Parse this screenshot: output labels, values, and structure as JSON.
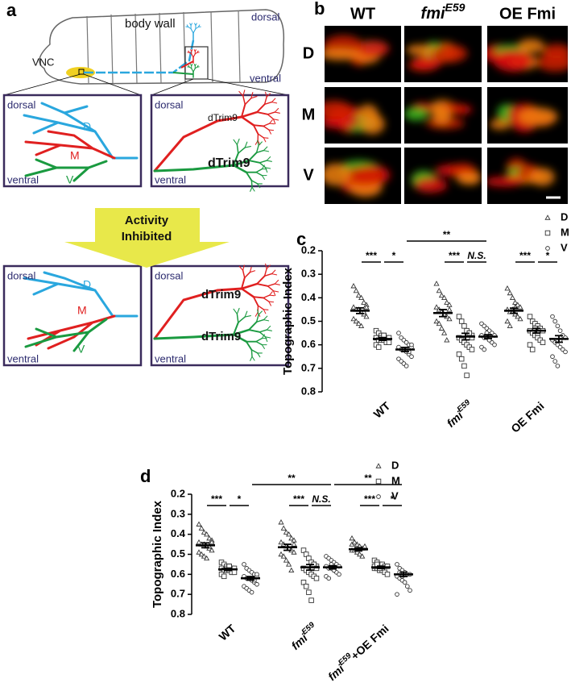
{
  "panel_a": {
    "label": "a",
    "larva": {
      "body_wall": "body wall",
      "dorsal": "dorsal",
      "ventral": "ventral",
      "vnc": "VNC"
    },
    "boxes": [
      {
        "dorsal": "dorsal",
        "ventral": "ventral",
        "labels": [
          "D",
          "M",
          "V"
        ]
      },
      {
        "dorsal": "dorsal",
        "ventral": "ventral",
        "labels": [
          "dTrim9",
          "dTrim9"
        ]
      },
      {
        "dorsal": "dorsal",
        "ventral": "ventral",
        "labels": [
          "D",
          "M",
          "V"
        ]
      },
      {
        "dorsal": "dorsal",
        "ventral": "ventral",
        "labels": [
          "dTrim9",
          "dTrim9"
        ]
      }
    ],
    "arrow": [
      "Activity",
      "Inhibited"
    ]
  },
  "panel_b": {
    "label": "b",
    "columns": [
      "WT",
      {
        "text": "fmi",
        "sup": "E59"
      },
      "OE Fmi"
    ],
    "rows": [
      "D",
      "M",
      "V"
    ]
  },
  "chart_data": [
    {
      "type": "dot",
      "panel_label": "c",
      "ylabel": "Topographic Index",
      "categories": [
        "WT",
        {
          "text": "fmi",
          "sup": "E59"
        },
        "OE Fmi"
      ],
      "ylim": [
        0.2,
        0.8
      ],
      "yticks": [
        0.2,
        0.3,
        0.4,
        0.5,
        0.6,
        0.7,
        0.8
      ],
      "y_inverted": true,
      "series": [
        {
          "name": "D",
          "marker": "triangle",
          "color": "#333333",
          "values": [
            [
              0.35,
              0.37,
              0.39,
              0.4,
              0.42,
              0.43,
              0.44,
              0.45,
              0.45,
              0.46,
              0.47,
              0.48,
              0.49,
              0.5,
              0.51,
              0.52,
              0.46,
              0.44
            ],
            [
              0.34,
              0.37,
              0.39,
              0.4,
              0.42,
              0.43,
              0.44,
              0.45,
              0.46,
              0.47,
              0.48,
              0.49,
              0.5,
              0.51,
              0.53,
              0.55,
              0.58,
              0.45
            ],
            [
              0.36,
              0.38,
              0.4,
              0.42,
              0.43,
              0.44,
              0.45,
              0.46,
              0.46,
              0.47,
              0.48,
              0.49,
              0.5,
              0.52,
              0.45,
              0.44
            ]
          ],
          "mean": [
            0.455,
            0.465,
            0.455
          ],
          "sem": [
            0.012,
            0.015,
            0.011
          ]
        },
        {
          "name": "M",
          "marker": "square",
          "color": "#333333",
          "values": [
            [
              0.54,
              0.55,
              0.56,
              0.56,
              0.57,
              0.57,
              0.57,
              0.58,
              0.58,
              0.58,
              0.59,
              0.59,
              0.6,
              0.61,
              0.57,
              0.56
            ],
            [
              0.48,
              0.5,
              0.52,
              0.54,
              0.55,
              0.56,
              0.57,
              0.58,
              0.59,
              0.6,
              0.61,
              0.62,
              0.64,
              0.66,
              0.69,
              0.73,
              0.55,
              0.57
            ],
            [
              0.48,
              0.5,
              0.51,
              0.52,
              0.53,
              0.54,
              0.54,
              0.55,
              0.56,
              0.57,
              0.58,
              0.59,
              0.6,
              0.62,
              0.53,
              0.55
            ]
          ],
          "mean": [
            0.575,
            0.565,
            0.54
          ],
          "sem": [
            0.006,
            0.014,
            0.01
          ]
        },
        {
          "name": "V",
          "marker": "circle",
          "color": "#333333",
          "values": [
            [
              0.55,
              0.57,
              0.58,
              0.59,
              0.6,
              0.61,
              0.61,
              0.62,
              0.62,
              0.63,
              0.64,
              0.65,
              0.66,
              0.67,
              0.68,
              0.69,
              0.63,
              0.6
            ],
            [
              0.51,
              0.52,
              0.53,
              0.54,
              0.55,
              0.56,
              0.56,
              0.57,
              0.57,
              0.58,
              0.59,
              0.6,
              0.61,
              0.62,
              0.55,
              0.58
            ],
            [
              0.48,
              0.5,
              0.52,
              0.54,
              0.56,
              0.57,
              0.58,
              0.59,
              0.6,
              0.61,
              0.62,
              0.63,
              0.65,
              0.67,
              0.69,
              0.58
            ]
          ],
          "mean": [
            0.62,
            0.565,
            0.575
          ],
          "sem": [
            0.009,
            0.008,
            0.014
          ]
        }
      ],
      "annotations": [
        {
          "text": "***",
          "from": [
            0,
            0
          ],
          "to": [
            0,
            1
          ]
        },
        {
          "text": "*",
          "from": [
            0,
            1
          ],
          "to": [
            0,
            2
          ]
        },
        {
          "text": "**",
          "from": [
            0,
            2
          ],
          "to": [
            1,
            2
          ]
        },
        {
          "text": "***",
          "from": [
            1,
            0
          ],
          "to": [
            1,
            1
          ]
        },
        {
          "text": "N.S.",
          "from": [
            1,
            1
          ],
          "to": [
            1,
            2
          ]
        },
        {
          "text": "***",
          "from": [
            2,
            0
          ],
          "to": [
            2,
            1
          ]
        },
        {
          "text": "*",
          "from": [
            2,
            1
          ],
          "to": [
            2,
            2
          ]
        }
      ]
    },
    {
      "type": "dot",
      "panel_label": "d",
      "ylabel": "Topographic Index",
      "categories": [
        "WT",
        {
          "text": "fmi",
          "sup": "E59"
        },
        {
          "text": "fmi",
          "sup": "E59",
          "after": "+OE Fmi"
        }
      ],
      "ylim": [
        0.2,
        0.8
      ],
      "yticks": [
        0.2,
        0.3,
        0.4,
        0.5,
        0.6,
        0.7,
        0.8
      ],
      "y_inverted": true,
      "series": [
        {
          "name": "D",
          "marker": "triangle",
          "color": "#333333",
          "values": [
            [
              0.35,
              0.37,
              0.39,
              0.4,
              0.42,
              0.43,
              0.44,
              0.45,
              0.45,
              0.46,
              0.47,
              0.48,
              0.49,
              0.5,
              0.51,
              0.52,
              0.46,
              0.44
            ],
            [
              0.34,
              0.37,
              0.39,
              0.4,
              0.42,
              0.43,
              0.44,
              0.45,
              0.46,
              0.47,
              0.48,
              0.49,
              0.5,
              0.51,
              0.53,
              0.55,
              0.58,
              0.45
            ],
            [
              0.42,
              0.44,
              0.45,
              0.46,
              0.47,
              0.47,
              0.48,
              0.48,
              0.49,
              0.5,
              0.51,
              0.46,
              0.45,
              0.44
            ]
          ],
          "mean": [
            0.455,
            0.465,
            0.475
          ],
          "sem": [
            0.012,
            0.015,
            0.008
          ]
        },
        {
          "name": "M",
          "marker": "square",
          "color": "#333333",
          "values": [
            [
              0.54,
              0.55,
              0.56,
              0.56,
              0.57,
              0.57,
              0.57,
              0.58,
              0.58,
              0.58,
              0.59,
              0.59,
              0.6,
              0.61,
              0.57,
              0.56
            ],
            [
              0.48,
              0.5,
              0.52,
              0.54,
              0.55,
              0.56,
              0.57,
              0.58,
              0.59,
              0.6,
              0.61,
              0.62,
              0.64,
              0.66,
              0.69,
              0.73,
              0.55,
              0.57
            ],
            [
              0.53,
              0.54,
              0.55,
              0.55,
              0.56,
              0.56,
              0.57,
              0.57,
              0.58,
              0.58,
              0.59,
              0.6,
              0.56,
              0.55,
              0.57
            ]
          ],
          "mean": [
            0.575,
            0.565,
            0.565
          ],
          "sem": [
            0.006,
            0.014,
            0.006
          ]
        },
        {
          "name": "V",
          "marker": "circle",
          "color": "#333333",
          "values": [
            [
              0.55,
              0.57,
              0.58,
              0.59,
              0.6,
              0.61,
              0.61,
              0.62,
              0.62,
              0.63,
              0.64,
              0.65,
              0.66,
              0.67,
              0.68,
              0.69,
              0.63,
              0.6
            ],
            [
              0.51,
              0.52,
              0.53,
              0.54,
              0.55,
              0.56,
              0.56,
              0.57,
              0.57,
              0.58,
              0.59,
              0.6,
              0.61,
              0.62,
              0.55,
              0.58
            ],
            [
              0.55,
              0.57,
              0.58,
              0.59,
              0.6,
              0.6,
              0.61,
              0.62,
              0.63,
              0.64,
              0.66,
              0.68,
              0.7,
              0.59,
              0.61
            ]
          ],
          "mean": [
            0.62,
            0.565,
            0.6
          ],
          "sem": [
            0.009,
            0.008,
            0.011
          ]
        }
      ],
      "annotations": [
        {
          "text": "***",
          "from": [
            0,
            0
          ],
          "to": [
            0,
            1
          ]
        },
        {
          "text": "*",
          "from": [
            0,
            1
          ],
          "to": [
            0,
            2
          ]
        },
        {
          "text": "**",
          "from": [
            0,
            2
          ],
          "to": [
            1,
            2
          ]
        },
        {
          "text": "***",
          "from": [
            1,
            0
          ],
          "to": [
            1,
            1
          ]
        },
        {
          "text": "N.S.",
          "from": [
            1,
            1
          ],
          "to": [
            1,
            2
          ]
        },
        {
          "text": "**",
          "from": [
            1,
            2
          ],
          "to": [
            2,
            2
          ]
        },
        {
          "text": "***",
          "from": [
            2,
            0
          ],
          "to": [
            2,
            1
          ]
        },
        {
          "text": "*",
          "from": [
            2,
            1
          ],
          "to": [
            2,
            2
          ]
        }
      ]
    }
  ]
}
